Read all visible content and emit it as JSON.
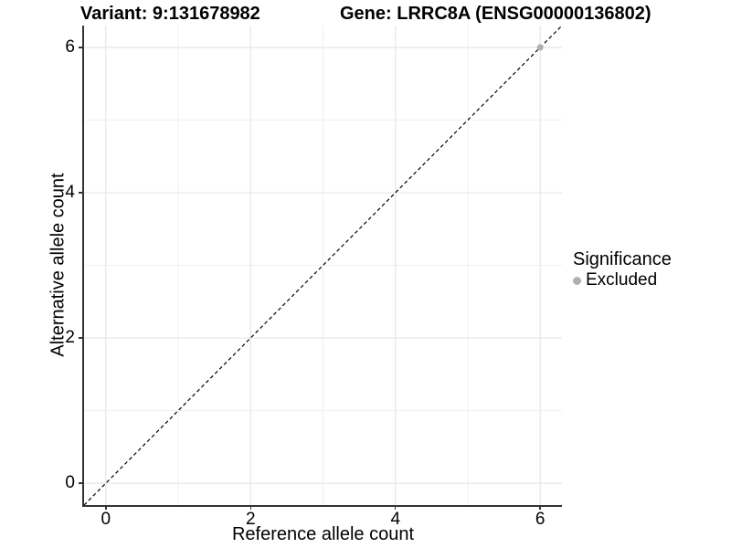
{
  "title": {
    "variant": "Variant: 9:131678982",
    "gene": "Gene: LRRC8A (ENSG00000136802)"
  },
  "chart_data": {
    "type": "scatter",
    "title": "Variant: 9:131678982   Gene: LRRC8A (ENSG00000136802)",
    "xlabel": "Reference allele count",
    "ylabel": "Alternative allele count",
    "xlim": [
      -0.3,
      6.3
    ],
    "ylim": [
      -0.3,
      6.3
    ],
    "x_ticks": [
      0,
      2,
      4,
      6
    ],
    "y_ticks": [
      0,
      2,
      4,
      6
    ],
    "x_minor_ticks": [
      1,
      3,
      5
    ],
    "y_minor_ticks": [
      1,
      3,
      5
    ],
    "grid": true,
    "series": [
      {
        "name": "Excluded",
        "color": "#b0b0b0",
        "points": [
          [
            6,
            6
          ]
        ]
      }
    ],
    "identity_line": {
      "style": "dashed",
      "color": "#000000",
      "from": [
        -0.3,
        -0.3
      ],
      "to": [
        6.3,
        6.3
      ]
    },
    "legend": {
      "position": "right",
      "title": "Significance",
      "items": [
        {
          "label": "Excluded",
          "color": "#b0b0b0"
        }
      ]
    }
  },
  "colors": {
    "background": "#ffffff",
    "axis_line": "#333333",
    "grid_major": "#e6e6e6",
    "grid_minor": "#f0f0f0",
    "point": "#b0b0b0",
    "text": "#000000"
  }
}
